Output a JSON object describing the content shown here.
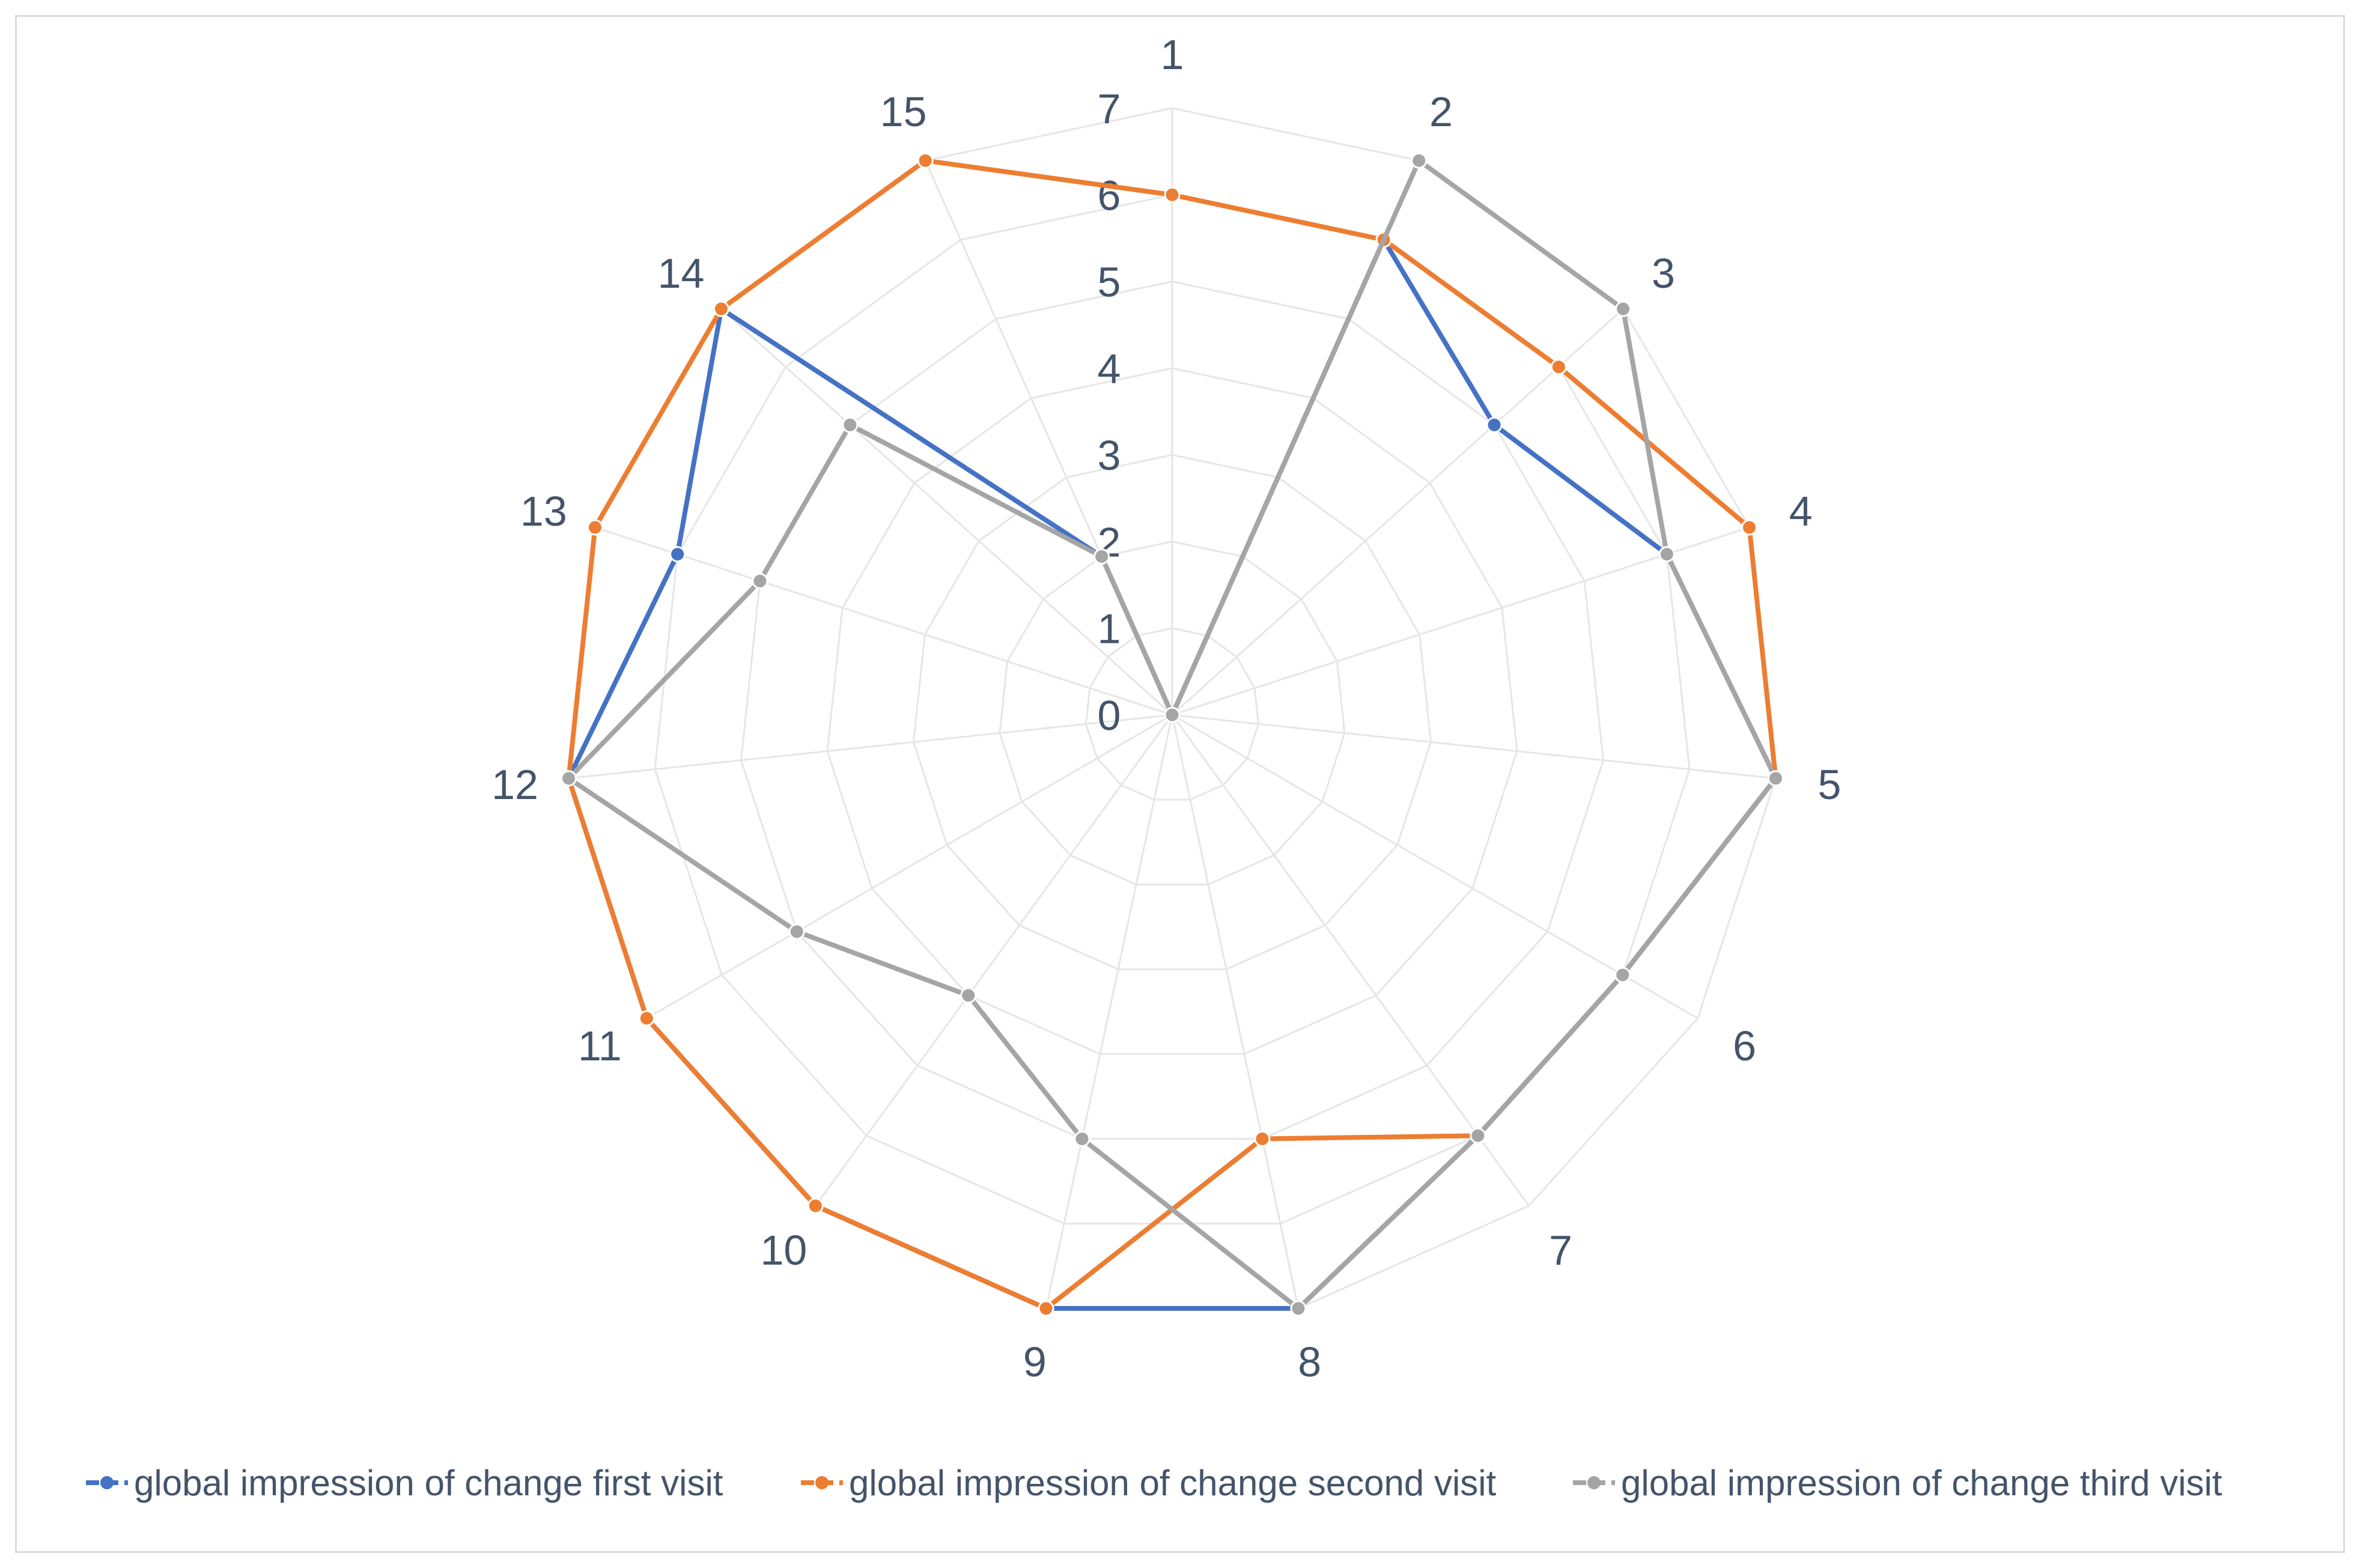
{
  "chart_data": {
    "type": "radar",
    "categories": [
      "1",
      "2",
      "3",
      "4",
      "5",
      "6",
      "7",
      "8",
      "9",
      "10",
      "11",
      "12",
      "13",
      "14",
      "15"
    ],
    "r_ticks": [
      "0",
      "1",
      "2",
      "3",
      "4",
      "5",
      "6",
      "7"
    ],
    "rlim": [
      0,
      7
    ],
    "grid": true,
    "legend_position": "bottom",
    "series": [
      {
        "name": "global impression of change first visit",
        "color": "#4472c4",
        "values": [
          0,
          6,
          5,
          6,
          7,
          6,
          6,
          7,
          7,
          7,
          7,
          7,
          6,
          7,
          2
        ]
      },
      {
        "name": "global impression of change second visit",
        "color": "#ed7d31",
        "values": [
          6,
          6,
          6,
          7,
          7,
          6,
          6,
          5,
          7,
          7,
          7,
          7,
          7,
          7,
          7
        ]
      },
      {
        "name": "global impression of change third visit",
        "color": "#a5a5a5",
        "values": [
          0,
          7,
          7,
          6,
          7,
          6,
          6,
          7,
          5,
          4,
          5,
          7,
          5,
          5,
          2
        ]
      }
    ]
  }
}
